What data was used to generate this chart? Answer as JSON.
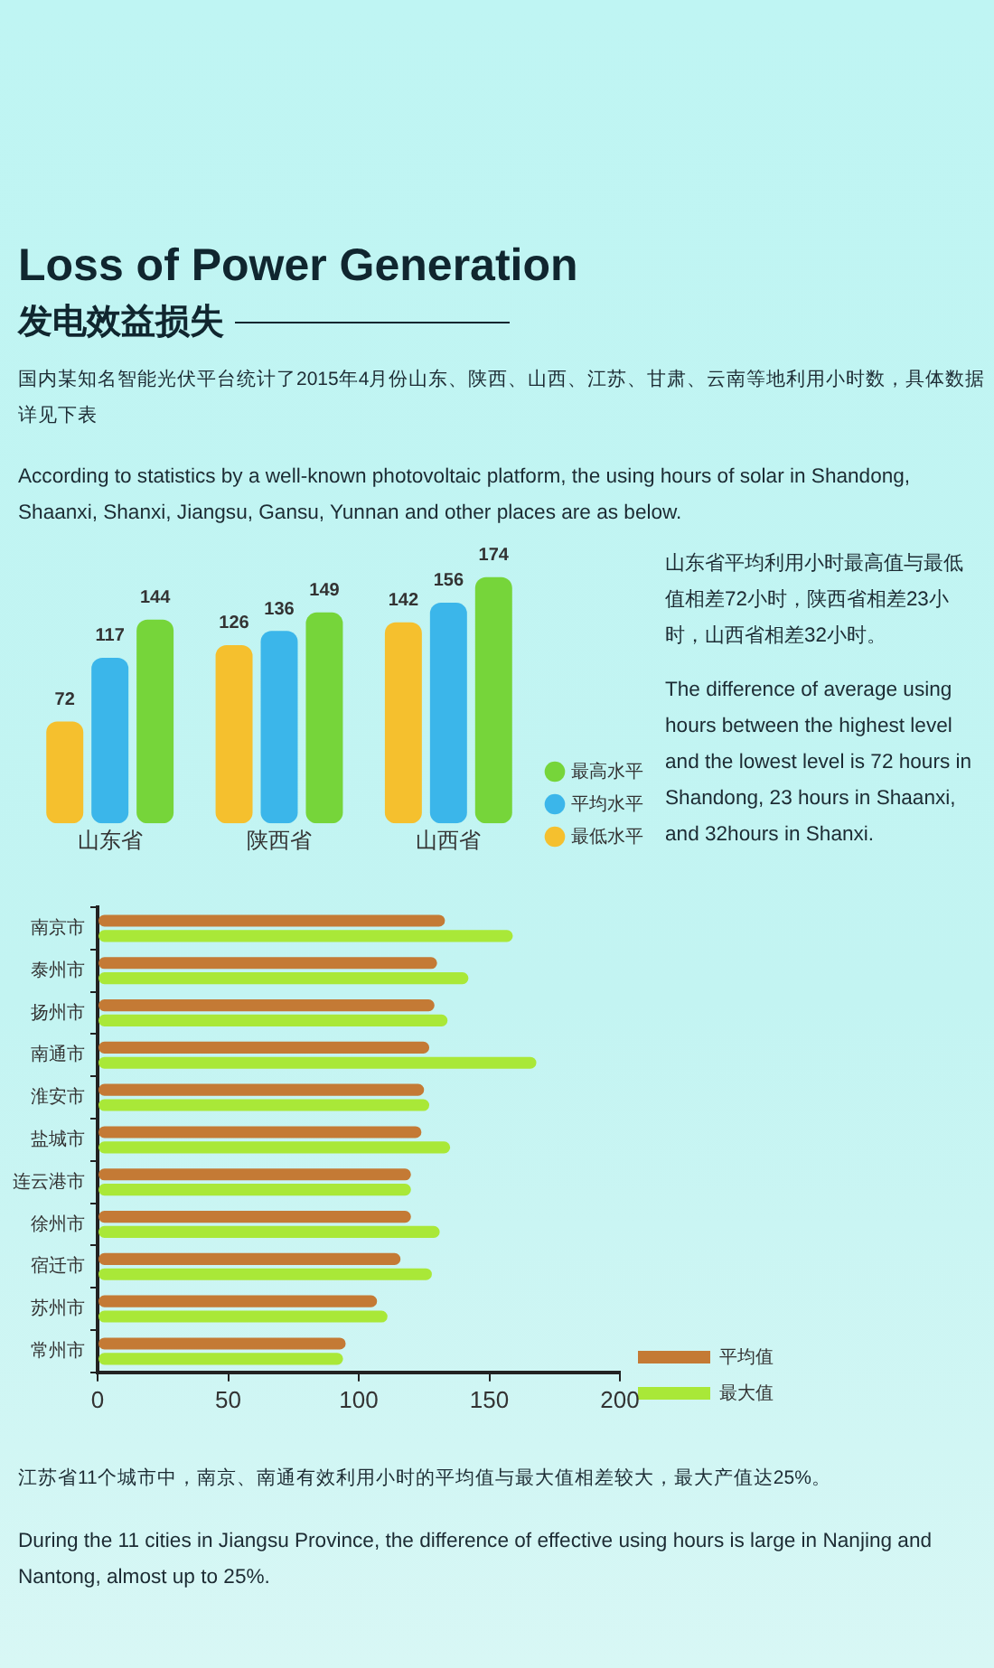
{
  "chart_data": [
    {
      "type": "bar",
      "title": "Loss of Power Generation",
      "subtitle": "发电效益损失",
      "annotations": [
        "国内某知名智能光伏平台统计了2015年4月份山东、陕西、山西、江苏、甘肃、云南等地利用小时数，具体数据详见下表",
        "According to statistics by a well-known photovoltaic platform, the using hours of solar in Shandong, Shaanxi, Shanxi, Jiangsu, Gansu, Yunnan and other places are as below.",
        "山东省平均利用小时最高值与最低值相差72小时，陕西省相差23小时，山西省相差32小时。",
        "The difference of average using hours between the highest level and the lowest level is 72 hours in Shandong, 23 hours in Shaanxi, and 32hours in Shanxi."
      ],
      "categories": [
        "山东省",
        "陕西省",
        "山西省"
      ],
      "series": [
        {
          "name": "最低水平",
          "color": "#f5c02e",
          "values": [
            72,
            126,
            142
          ]
        },
        {
          "name": "平均水平",
          "color": "#3bb6ea",
          "values": [
            117,
            136,
            156
          ]
        },
        {
          "name": "最高水平",
          "color": "#76d53a",
          "values": [
            144,
            149,
            174
          ]
        }
      ],
      "data_labels": true,
      "legend": "bottom right",
      "tick_labels": "x"
    },
    {
      "type": "bar",
      "orientation": "horizontal",
      "annotations": [
        "江苏省11个城市中，南京、南通有效利用小时的平均值与最大值相差较大，最大产值达25%。",
        "During the 11 cities in Jiangsu Province, the difference of effective using hours is large in Nanjing and Nantong, almost up to 25%."
      ],
      "categories": [
        "南京市",
        "泰州市",
        "扬州市",
        "南通市",
        "淮安市",
        "盐城市",
        "连云港市",
        "徐州市",
        "宿迁市",
        "苏州市",
        "常州市"
      ],
      "series": [
        {
          "name": "平均值",
          "color": "#c47a35",
          "values": [
            133,
            130,
            129,
            127,
            125,
            124,
            120,
            120,
            116,
            107,
            95
          ]
        },
        {
          "name": "最大值",
          "color": "#a9e838",
          "values": [
            159,
            142,
            134,
            168,
            127,
            135,
            120,
            131,
            128,
            111,
            94
          ]
        }
      ],
      "xlim": [
        0,
        200
      ],
      "xticks": [
        0,
        50,
        100,
        150,
        200
      ],
      "legend": "bottom right"
    }
  ]
}
